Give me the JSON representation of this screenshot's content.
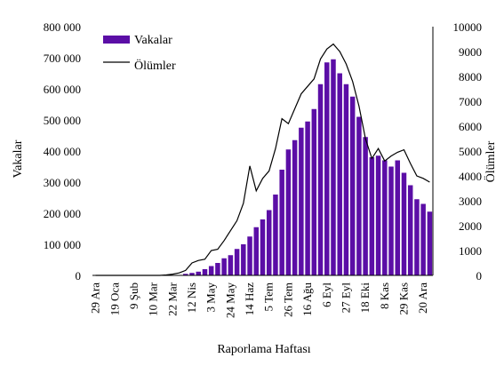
{
  "chart_data": {
    "type": "bar+line",
    "xlabel": "Raporlama Haftası",
    "ylabel_left": "Vakalar",
    "ylabel_right": "Ölümler",
    "ylim_left": [
      0,
      800000
    ],
    "ylim_right": [
      0,
      10000
    ],
    "left_ticks": [
      "0",
      "100 000",
      "200 000",
      "300 000",
      "400 000",
      "500 000",
      "600 000",
      "700 000",
      "800 000"
    ],
    "right_ticks": [
      "0",
      "1000",
      "2000",
      "3000",
      "4000",
      "5000",
      "6000",
      "7000",
      "8000",
      "9000",
      "10000"
    ],
    "x_labels": [
      "29 Ara",
      "19 Oca",
      "9 Şub",
      "10 Mar",
      "22 Mar",
      "12 Nis",
      "3 May",
      "24 May",
      "14 Haz",
      "5 Tem",
      "26 Tem",
      "16 Ağu",
      "6 Eyl",
      "27 Eyl",
      "18 Eki",
      "8 Kas",
      "29 Kas",
      "20 Ara"
    ],
    "grid": false,
    "legend_position": "top-left",
    "series": [
      {
        "name": "Vakalar",
        "type": "bar",
        "color": "#5b0ea6",
        "values": [
          0,
          0,
          0,
          0,
          0,
          0,
          0,
          0,
          0,
          0,
          0,
          0,
          0,
          0,
          5000,
          8000,
          12000,
          20000,
          30000,
          40000,
          55000,
          65000,
          85000,
          100000,
          125000,
          155000,
          180000,
          210000,
          260000,
          340000,
          405000,
          435000,
          475000,
          495000,
          535000,
          615000,
          685000,
          695000,
          650000,
          615000,
          575000,
          510000,
          445000,
          380000,
          385000,
          370000,
          350000,
          370000,
          330000,
          290000,
          245000,
          230000,
          205000
        ]
      },
      {
        "name": "Ölümler",
        "type": "line",
        "color": "#000000",
        "values": [
          0,
          0,
          0,
          0,
          0,
          0,
          0,
          0,
          0,
          0,
          0,
          20,
          50,
          100,
          200,
          500,
          600,
          650,
          1000,
          1050,
          1400,
          1800,
          2200,
          2900,
          4400,
          3400,
          3900,
          4200,
          5100,
          6300,
          6100,
          6700,
          7300,
          7600,
          7900,
          8700,
          9100,
          9300,
          9000,
          8500,
          7800,
          6800,
          5500,
          4700,
          5100,
          4600,
          4800,
          4950,
          5050,
          4500,
          4000,
          3900,
          3750
        ]
      }
    ]
  }
}
